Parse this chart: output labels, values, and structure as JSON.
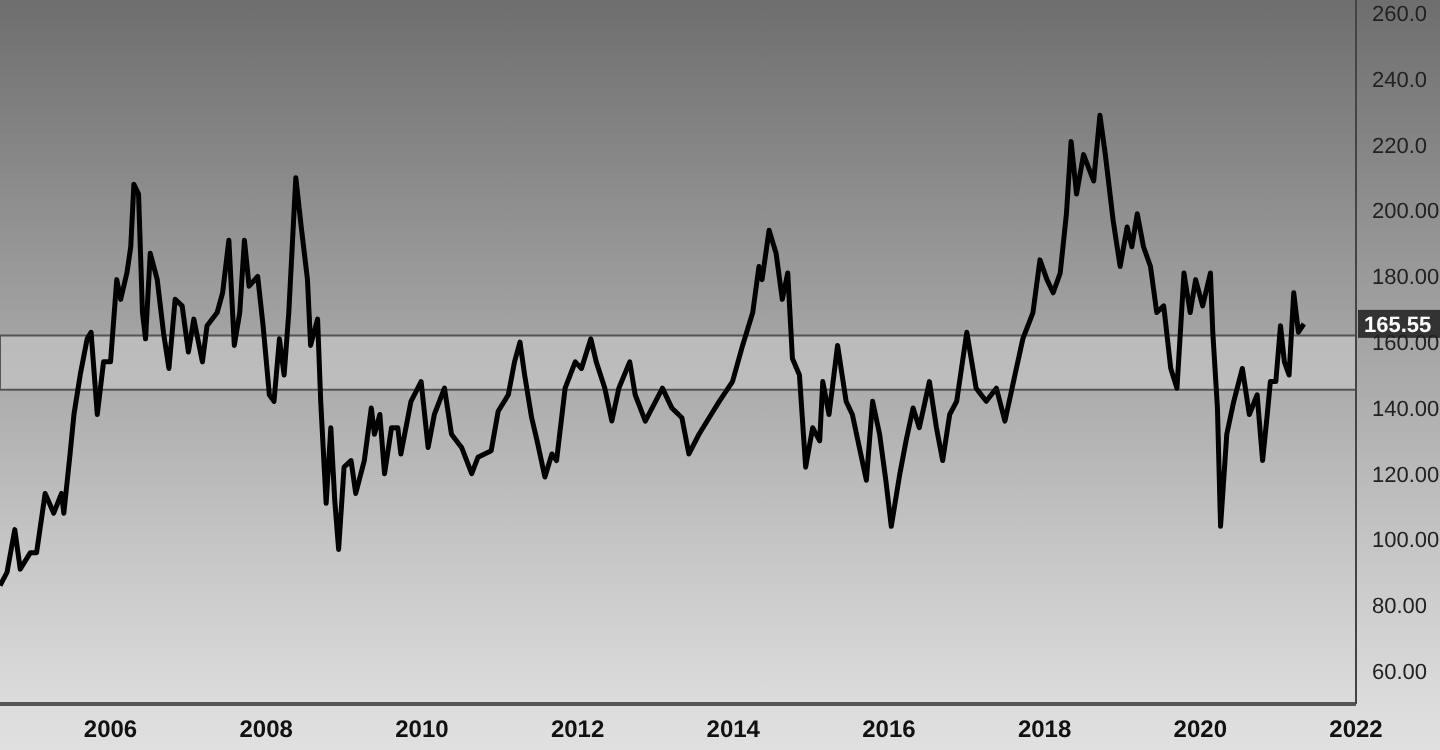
{
  "chart_data": {
    "type": "line",
    "x": [
      2004.58,
      2004.67,
      2004.77,
      2004.84,
      2004.97,
      2005.05,
      2005.16,
      2005.27,
      2005.37,
      2005.4,
      2005.48,
      2005.53,
      2005.61,
      2005.7,
      2005.75,
      2005.83,
      2005.91,
      2006.0,
      2006.08,
      2006.13,
      2006.21,
      2006.26,
      2006.3,
      2006.36,
      2006.41,
      2006.45,
      2006.51,
      2006.6,
      2006.68,
      2006.75,
      2006.83,
      2006.92,
      2007.0,
      2007.07,
      2007.18,
      2007.24,
      2007.37,
      2007.44,
      2007.52,
      2007.59,
      2007.66,
      2007.72,
      2007.78,
      2007.89,
      2007.96,
      2008.04,
      2008.1,
      2008.17,
      2008.23,
      2008.29,
      2008.38,
      2008.45,
      2008.53,
      2008.57,
      2008.66,
      2008.7,
      2008.77,
      2008.83,
      2008.88,
      2008.93,
      2009.0,
      2009.09,
      2009.15,
      2009.26,
      2009.35,
      2009.39,
      2009.46,
      2009.52,
      2009.61,
      2009.69,
      2009.73,
      2009.86,
      2009.99,
      2010.08,
      2010.16,
      2010.29,
      2010.38,
      2010.51,
      2010.64,
      2010.72,
      2010.89,
      2010.98,
      2011.11,
      2011.19,
      2011.26,
      2011.32,
      2011.41,
      2011.48,
      2011.58,
      2011.67,
      2011.73,
      2011.84,
      2011.97,
      2012.05,
      2012.17,
      2012.24,
      2012.35,
      2012.44,
      2012.53,
      2012.67,
      2012.74,
      2012.87,
      2013.09,
      2013.21,
      2013.34,
      2013.43,
      2013.56,
      2013.69,
      2013.82,
      2013.99,
      2014.12,
      2014.25,
      2014.33,
      2014.37,
      2014.46,
      2014.55,
      2014.63,
      2014.7,
      2014.76,
      2014.85,
      2014.93,
      2015.02,
      2015.11,
      2015.15,
      2015.23,
      2015.34,
      2015.45,
      2015.53,
      2015.62,
      2015.71,
      2015.79,
      2015.88,
      2015.96,
      2016.03,
      2016.14,
      2016.22,
      2016.31,
      2016.39,
      2016.52,
      2016.61,
      2016.69,
      2016.78,
      2016.87,
      2017.0,
      2017.12,
      2017.25,
      2017.38,
      2017.49,
      2017.6,
      2017.72,
      2017.85,
      2017.94,
      2018.03,
      2018.11,
      2018.2,
      2018.28,
      2018.34,
      2018.41,
      2018.5,
      2018.63,
      2018.71,
      2018.78,
      2018.88,
      2018.97,
      2019.06,
      2019.12,
      2019.19,
      2019.27,
      2019.36,
      2019.44,
      2019.53,
      2019.62,
      2019.7,
      2019.79,
      2019.87,
      2019.94,
      2020.03,
      2020.13,
      2020.16,
      2020.22,
      2020.26,
      2020.34,
      2020.43,
      2020.54,
      2020.63,
      2020.73,
      2020.8,
      2020.86,
      2020.9,
      2020.97,
      2021.03,
      2021.08,
      2021.14,
      2021.2,
      2021.26,
      2021.33
    ],
    "series": [
      {
        "color": "#000000",
        "values": [
          86,
          90,
          103,
          91,
          96,
          96,
          114,
          108,
          114,
          108,
          126,
          138,
          150,
          161,
          163,
          138,
          154,
          154,
          179,
          173,
          181,
          189,
          208,
          205,
          169,
          161,
          187,
          179,
          163,
          152,
          173,
          171,
          157,
          167,
          154,
          165,
          169,
          175,
          191,
          159,
          169,
          191,
          177,
          180,
          165,
          144,
          142,
          161,
          150,
          169,
          210,
          195,
          179,
          159,
          167,
          142,
          111,
          134,
          112,
          97,
          122,
          124,
          114,
          124,
          140,
          132,
          138,
          120,
          134,
          134,
          126,
          142,
          148,
          128,
          138,
          146,
          132,
          128,
          120,
          125,
          127,
          139,
          144,
          154,
          160,
          150,
          137,
          130,
          119,
          126,
          124,
          146,
          154,
          152,
          161,
          154,
          146,
          136,
          146,
          154,
          144,
          136,
          146,
          140,
          137,
          126,
          132,
          137,
          142,
          148,
          159,
          169,
          183,
          179,
          194,
          187,
          173,
          181,
          155,
          150,
          122,
          134,
          130,
          148,
          138,
          159,
          142,
          138,
          128,
          118,
          142,
          132,
          118,
          104,
          120,
          130,
          140,
          134,
          148,
          134,
          124,
          138,
          142,
          163,
          146,
          142,
          146,
          136,
          148,
          161,
          169,
          185,
          179,
          175,
          181,
          199,
          221,
          205,
          217,
          209,
          229,
          217,
          197,
          183,
          195,
          189,
          199,
          189,
          183,
          169,
          171,
          152,
          146,
          181,
          169,
          179,
          171,
          181,
          163,
          140,
          104,
          132,
          142,
          152,
          138,
          144,
          124,
          138,
          148,
          148,
          165,
          154,
          150,
          175,
          163,
          165.55
        ]
      }
    ],
    "xlim": [
      2004.58,
      2022
    ],
    "xticks": [
      2006,
      2008,
      2010,
      2012,
      2014,
      2016,
      2018,
      2020,
      2022
    ],
    "ylim": [
      50,
      264
    ],
    "yticks": [
      {
        "value": 60,
        "label": "60.00"
      },
      {
        "value": 80,
        "label": "80.00"
      },
      {
        "value": 100,
        "label": "100.00"
      },
      {
        "value": 120,
        "label": "120.00"
      },
      {
        "value": 140,
        "label": "140.00"
      },
      {
        "value": 160,
        "label": "160.00"
      },
      {
        "value": 180,
        "label": "180.00"
      },
      {
        "value": 200,
        "label": "200.00"
      },
      {
        "value": 220,
        "label": "220.0"
      },
      {
        "value": 240,
        "label": "240.0"
      },
      {
        "value": 260,
        "label": "260.0"
      }
    ],
    "bands": [
      {
        "axis": "y",
        "from": 145.5,
        "to": 162,
        "color": "#c4c4c4"
      }
    ],
    "annotations": [
      {
        "text": "165.55",
        "y": 165.55
      }
    ],
    "grid": false,
    "legend": false,
    "marker": "none",
    "line_style": "solid"
  }
}
